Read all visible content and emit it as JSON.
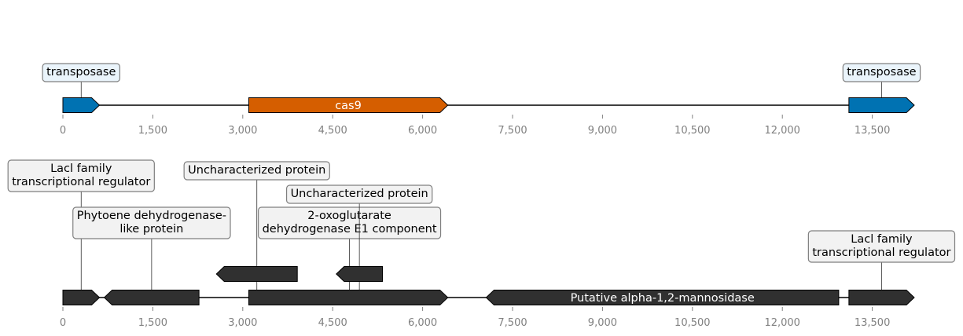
{
  "colors": {
    "transposase": "#0072b2",
    "cas9": "#d55e00",
    "dark": "#303030",
    "transposase_label_fill": "#eaf4fb",
    "label_fill": "#f2f2f2",
    "label_stroke": "#7f7f7f",
    "tick": "#808080"
  },
  "tracks": [
    {
      "id": "top",
      "range": [
        0,
        14200
      ],
      "ticks": [
        0,
        1500,
        3000,
        4500,
        6000,
        7500,
        9000,
        10500,
        12000,
        13500
      ],
      "tick_labels": [
        "0",
        "1,500",
        "3,000",
        "4,500",
        "6,000",
        "7,500",
        "9,000",
        "10,500",
        "12,000",
        "13,500"
      ],
      "features": [
        {
          "start": 0,
          "end": 610,
          "strand": 1,
          "color": "transposase",
          "row": 0
        },
        {
          "start": 3100,
          "end": 6420,
          "strand": 1,
          "color": "cas9",
          "row": 0,
          "inline_label": "cas9"
        },
        {
          "start": 13110,
          "end": 14200,
          "strand": 1,
          "color": "transposase",
          "row": 0
        }
      ],
      "labels": [
        {
          "lines": [
            "transposase"
          ],
          "anchor": 305,
          "level": 0,
          "fill": "transposase_label_fill"
        },
        {
          "lines": [
            "transposase"
          ],
          "anchor": 13655,
          "level": 0,
          "fill": "transposase_label_fill"
        }
      ]
    },
    {
      "id": "bottom",
      "range": [
        0,
        14200
      ],
      "ticks": [
        0,
        1500,
        3000,
        4500,
        6000,
        7500,
        9000,
        10500,
        12000,
        13500
      ],
      "tick_labels": [
        "0",
        "1,500",
        "3,000",
        "4,500",
        "6,000",
        "7,500",
        "9,000",
        "10,500",
        "12,000",
        "13,500"
      ],
      "features": [
        {
          "start": 0,
          "end": 610,
          "strand": 1,
          "color": "dark",
          "row": 0
        },
        {
          "start": 690,
          "end": 2270,
          "strand": -1,
          "color": "dark",
          "row": 0
        },
        {
          "start": 3100,
          "end": 6420,
          "strand": 1,
          "color": "dark",
          "row": 0
        },
        {
          "start": 7060,
          "end": 12940,
          "strand": -1,
          "color": "dark",
          "row": 0,
          "inline_label": "Putative alpha-1,2-mannosidase"
        },
        {
          "start": 13110,
          "end": 14200,
          "strand": 1,
          "color": "dark",
          "row": 0
        },
        {
          "start": 2560,
          "end": 3910,
          "strand": -1,
          "color": "dark",
          "row": 1
        },
        {
          "start": 4560,
          "end": 5330,
          "strand": -1,
          "color": "dark",
          "row": 1
        }
      ],
      "labels": [
        {
          "lines": [
            "Lacl family",
            "transcriptional regulator"
          ],
          "anchor": 305,
          "level": 3
        },
        {
          "lines": [
            "Phytoene dehydrogenase-",
            "like protein"
          ],
          "anchor": 1480,
          "level": 1
        },
        {
          "lines": [
            "Uncharacterized protein"
          ],
          "anchor": 3235,
          "level": 4
        },
        {
          "lines": [
            "2-oxoglutarate",
            "dehydrogenase E1 component"
          ],
          "anchor": 4780,
          "level": 1
        },
        {
          "lines": [
            "Uncharacterized protein"
          ],
          "anchor": 4945,
          "level": 2
        },
        {
          "lines": [
            "Lacl family",
            "transcriptional regulator"
          ],
          "anchor": 13655,
          "level": 0
        }
      ]
    }
  ]
}
